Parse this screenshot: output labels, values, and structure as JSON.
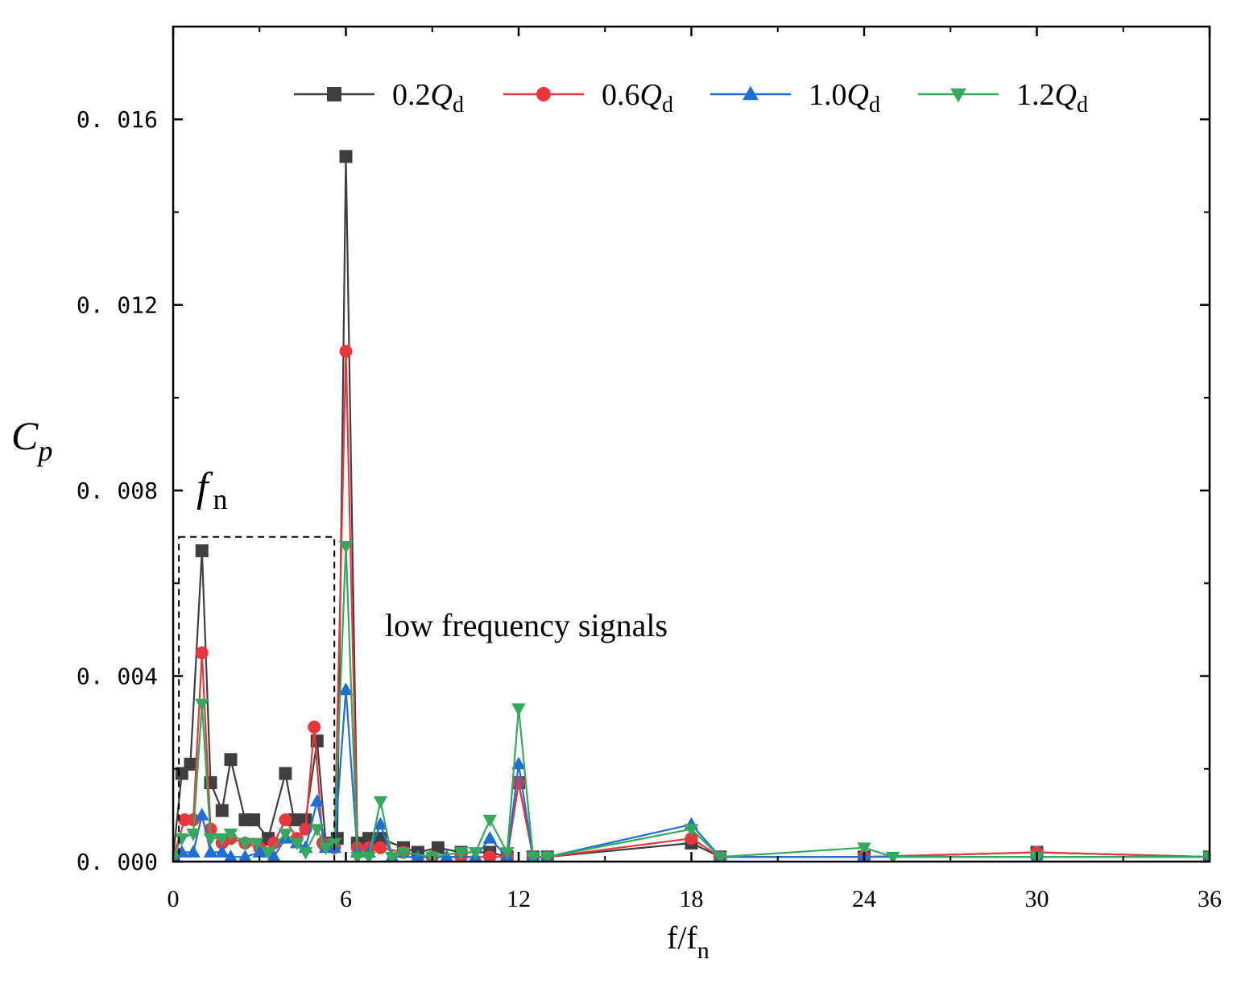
{
  "chart_data": {
    "type": "line",
    "title": "",
    "xlabel": "f/f",
    "xlabel_sub": "n",
    "ylabel": "C",
    "ylabel_sub": "p",
    "xlim": [
      0,
      36
    ],
    "ylim": [
      0,
      0.018
    ],
    "xticks": [
      0,
      6,
      12,
      18,
      24,
      30,
      36
    ],
    "xtick_labels": [
      "0",
      "6",
      "12",
      "18",
      "24",
      "30",
      "36"
    ],
    "yticks": [
      0,
      0.004,
      0.008,
      0.012,
      0.016
    ],
    "ytick_labels": [
      "0. 000",
      "0. 004",
      "0. 008",
      "0. 012",
      "0. 016"
    ],
    "legend_position": "top",
    "annotations": {
      "fn_main": "f",
      "fn_sub": "n",
      "box_label": "low frequency signals",
      "box_range_x": [
        0.2,
        5.6
      ],
      "box_range_y": [
        0,
        0.007
      ]
    },
    "series": [
      {
        "name_prefix": "0.2",
        "name_var": "Q",
        "name_sub": "d",
        "color": "#3f3f3f",
        "marker": "square",
        "points": [
          [
            0,
            0.0001
          ],
          [
            0.3,
            0.0019
          ],
          [
            0.6,
            0.0021
          ],
          [
            1.0,
            0.0067
          ],
          [
            1.3,
            0.0017
          ],
          [
            1.7,
            0.0011
          ],
          [
            2.0,
            0.0022
          ],
          [
            2.5,
            0.0009
          ],
          [
            2.8,
            0.0009
          ],
          [
            3.3,
            0.0005
          ],
          [
            3.9,
            0.0019
          ],
          [
            4.2,
            0.0009
          ],
          [
            4.6,
            0.0009
          ],
          [
            5.0,
            0.0026
          ],
          [
            5.3,
            0.0004
          ],
          [
            5.7,
            0.0005
          ],
          [
            6.0,
            0.0152
          ],
          [
            6.4,
            0.0004
          ],
          [
            6.8,
            0.0005
          ],
          [
            7.2,
            0.0005
          ],
          [
            8.0,
            0.0003
          ],
          [
            8.5,
            0.0002
          ],
          [
            9.2,
            0.0003
          ],
          [
            10.0,
            0.0002
          ],
          [
            11.0,
            0.0002
          ],
          [
            11.6,
            0.0001
          ],
          [
            12.0,
            0.0017
          ],
          [
            12.5,
            0.0001
          ],
          [
            13.0,
            0.0001
          ],
          [
            18.0,
            0.0004
          ],
          [
            19.0,
            0.0001
          ],
          [
            24.0,
            0.0001
          ],
          [
            30.0,
            0.0002
          ],
          [
            36.0,
            0.0001
          ]
        ]
      },
      {
        "name_prefix": "0.6",
        "name_var": "Q",
        "name_sub": "d",
        "color": "#e8383d",
        "marker": "circle",
        "points": [
          [
            0,
            0.0001
          ],
          [
            0.4,
            0.0009
          ],
          [
            0.7,
            0.0009
          ],
          [
            1.0,
            0.0045
          ],
          [
            1.3,
            0.0007
          ],
          [
            1.7,
            0.0004
          ],
          [
            2.0,
            0.0005
          ],
          [
            2.5,
            0.0004
          ],
          [
            3.0,
            0.0003
          ],
          [
            3.5,
            0.0004
          ],
          [
            3.9,
            0.0009
          ],
          [
            4.3,
            0.0005
          ],
          [
            4.6,
            0.0007
          ],
          [
            4.9,
            0.0029
          ],
          [
            5.2,
            0.0004
          ],
          [
            5.6,
            0.0003
          ],
          [
            6.0,
            0.011
          ],
          [
            6.4,
            0.0003
          ],
          [
            6.8,
            0.0003
          ],
          [
            7.2,
            0.0003
          ],
          [
            8.0,
            0.0002
          ],
          [
            9.0,
            0.0001
          ],
          [
            10.0,
            0.0001
          ],
          [
            11.0,
            0.0001
          ],
          [
            11.6,
            0.0001
          ],
          [
            12.0,
            0.0017
          ],
          [
            12.5,
            0.0001
          ],
          [
            13.0,
            0.0001
          ],
          [
            18.0,
            0.0005
          ],
          [
            19.0,
            0.0001
          ],
          [
            24.0,
            0.0001
          ],
          [
            30.0,
            0.0002
          ],
          [
            36.0,
            0.0001
          ]
        ]
      },
      {
        "name_prefix": "1.0",
        "name_var": "Q",
        "name_sub": "d",
        "color": "#1f6ed6",
        "marker": "triangle-up",
        "points": [
          [
            0,
            0.0001
          ],
          [
            0.3,
            0.0002
          ],
          [
            0.7,
            0.0002
          ],
          [
            1.0,
            0.001
          ],
          [
            1.3,
            0.0002
          ],
          [
            1.7,
            0.0002
          ],
          [
            2.0,
            0.0001
          ],
          [
            2.5,
            0.0001
          ],
          [
            3.0,
            0.0002
          ],
          [
            3.5,
            0.0001
          ],
          [
            3.9,
            0.0005
          ],
          [
            4.3,
            0.0004
          ],
          [
            4.6,
            0.0003
          ],
          [
            5.0,
            0.0013
          ],
          [
            5.3,
            0.0003
          ],
          [
            5.6,
            0.0003
          ],
          [
            6.0,
            0.0037
          ],
          [
            6.4,
            0.0002
          ],
          [
            6.8,
            0.0002
          ],
          [
            7.2,
            0.0008
          ],
          [
            7.6,
            0.0001
          ],
          [
            8.5,
            0.0001
          ],
          [
            9.5,
            0.0001
          ],
          [
            10.5,
            0.0001
          ],
          [
            11.0,
            0.0005
          ],
          [
            11.6,
            0.0001
          ],
          [
            12.0,
            0.0021
          ],
          [
            12.5,
            0.0001
          ],
          [
            13.0,
            0.0001
          ],
          [
            18.0,
            0.0008
          ],
          [
            19.0,
            0.0001
          ],
          [
            24.0,
            0.0001
          ],
          [
            30.0,
            0.0001
          ],
          [
            36.0,
            0.0001
          ]
        ]
      },
      {
        "name_prefix": "1.2",
        "name_var": "Q",
        "name_sub": "d",
        "color": "#36a85e",
        "marker": "triangle-down",
        "points": [
          [
            0,
            0.0001
          ],
          [
            0.3,
            0.0005
          ],
          [
            0.7,
            0.0006
          ],
          [
            1.0,
            0.0034
          ],
          [
            1.3,
            0.0005
          ],
          [
            1.7,
            0.0005
          ],
          [
            2.0,
            0.0006
          ],
          [
            2.5,
            0.0004
          ],
          [
            2.9,
            0.0004
          ],
          [
            3.3,
            0.0002
          ],
          [
            3.9,
            0.0006
          ],
          [
            4.3,
            0.0004
          ],
          [
            4.6,
            0.0002
          ],
          [
            5.0,
            0.0007
          ],
          [
            5.3,
            0.0003
          ],
          [
            5.6,
            0.0004
          ],
          [
            6.0,
            0.0068
          ],
          [
            6.4,
            0.0001
          ],
          [
            6.8,
            0.0001
          ],
          [
            7.2,
            0.0013
          ],
          [
            7.6,
            0.0001
          ],
          [
            8.0,
            0.0002
          ],
          [
            9.0,
            0.0001
          ],
          [
            10.0,
            0.0002
          ],
          [
            10.5,
            0.0002
          ],
          [
            11.0,
            0.0009
          ],
          [
            11.6,
            0.0002
          ],
          [
            12.0,
            0.0033
          ],
          [
            12.5,
            0.0001
          ],
          [
            13.0,
            0.0001
          ],
          [
            18.0,
            0.0007
          ],
          [
            19.0,
            0.0001
          ],
          [
            24.0,
            0.0003
          ],
          [
            25.0,
            0.0001
          ],
          [
            30.0,
            0.0001
          ],
          [
            36.0,
            0.0001
          ]
        ]
      }
    ]
  }
}
